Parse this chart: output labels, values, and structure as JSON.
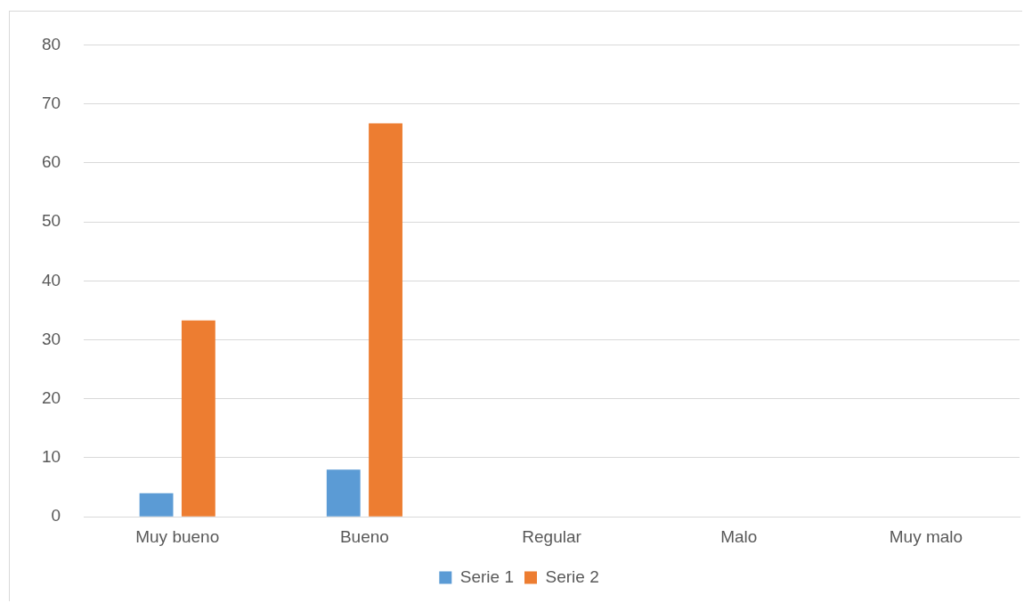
{
  "chart_data": {
    "type": "bar",
    "categories": [
      "Muy bueno",
      "Bueno",
      "Regular",
      "Malo",
      "Muy malo"
    ],
    "series": [
      {
        "name": "Serie 1",
        "color": "#5b9bd5",
        "values": [
          4,
          8,
          0,
          0,
          0
        ]
      },
      {
        "name": "Serie 2",
        "color": "#ed7d31",
        "values": [
          33.3,
          66.7,
          0,
          0,
          0
        ]
      }
    ],
    "ylim": [
      0,
      80
    ],
    "yticks": [
      0,
      10,
      20,
      30,
      40,
      50,
      60,
      70,
      80
    ],
    "grid": "y",
    "legend": "bottom"
  }
}
